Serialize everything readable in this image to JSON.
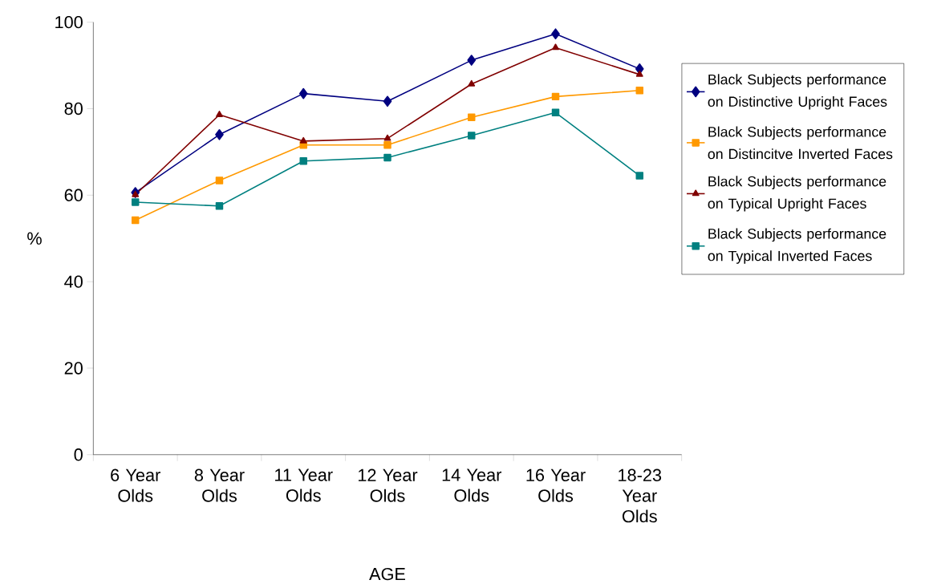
{
  "chart_data": {
    "type": "line",
    "xlabel": "AGE",
    "ylabel": "%",
    "categories": [
      "6 Year Olds",
      "8 Year Olds",
      "11 Year Olds",
      "12 Year Olds",
      "14 Year Olds",
      "16 Year Olds",
      "18-23 Year Olds"
    ],
    "series": [
      {
        "name": "Black Subjects performance on Distinctive Upright Faces",
        "color": "#000080",
        "marker": "diamond",
        "values": [
          60.6,
          74.0,
          83.5,
          81.7,
          91.2,
          97.3,
          89.2
        ]
      },
      {
        "name": "Black Subjects performance on Distincitve Inverted Faces",
        "color": "#ff9900",
        "marker": "square",
        "values": [
          54.2,
          63.4,
          71.6,
          71.6,
          78.0,
          82.8,
          84.2
        ]
      },
      {
        "name": "Black Subjects performance on Typical Upright Faces",
        "color": "#800000",
        "marker": "triangle",
        "values": [
          60.1,
          78.6,
          72.5,
          73.1,
          85.7,
          94.1,
          87.9
        ]
      },
      {
        "name": "Black Subjects performance on Typical Inverted Faces",
        "color": "#008080",
        "marker": "square",
        "values": [
          58.4,
          57.5,
          67.9,
          68.7,
          73.8,
          79.1,
          64.5
        ]
      }
    ],
    "ylim": [
      0,
      100
    ],
    "yticks": [
      0,
      20,
      40,
      60,
      80,
      100
    ],
    "legend": "right"
  }
}
